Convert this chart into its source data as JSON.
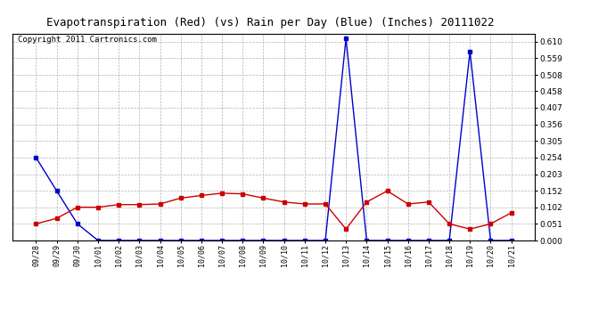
{
  "title": "Evapotranspiration (Red) (vs) Rain per Day (Blue) (Inches) 20111022",
  "copyright": "Copyright 2011 Cartronics.com",
  "labels": [
    "09/28",
    "09/29",
    "09/30",
    "10/01",
    "10/02",
    "10/03",
    "10/04",
    "10/05",
    "10/06",
    "10/07",
    "10/08",
    "10/09",
    "10/10",
    "10/11",
    "10/12",
    "10/13",
    "10/14",
    "10/15",
    "10/16",
    "10/17",
    "10/18",
    "10/19",
    "10/20",
    "10/21"
  ],
  "blue_rain": [
    0.254,
    0.152,
    0.051,
    0.0,
    0.0,
    0.0,
    0.0,
    0.0,
    0.0,
    0.0,
    0.0,
    0.0,
    0.0,
    0.0,
    0.0,
    0.62,
    0.0,
    0.0,
    0.0,
    0.0,
    0.0,
    0.58,
    0.0,
    0.0
  ],
  "red_et": [
    0.051,
    0.068,
    0.102,
    0.102,
    0.11,
    0.11,
    0.112,
    0.13,
    0.138,
    0.145,
    0.143,
    0.13,
    0.118,
    0.112,
    0.112,
    0.035,
    0.118,
    0.152,
    0.112,
    0.118,
    0.051,
    0.035,
    0.051,
    0.085
  ],
  "ylim": [
    0.0,
    0.635
  ],
  "yticks": [
    0.0,
    0.051,
    0.102,
    0.152,
    0.203,
    0.254,
    0.305,
    0.356,
    0.407,
    0.458,
    0.508,
    0.559,
    0.61
  ],
  "bg_color": "#ffffff",
  "plot_bg": "#ffffff",
  "grid_color": "#aaaaaa",
  "blue_color": "#0000cc",
  "red_color": "#cc0000",
  "title_fontsize": 9,
  "copyright_fontsize": 6.5
}
